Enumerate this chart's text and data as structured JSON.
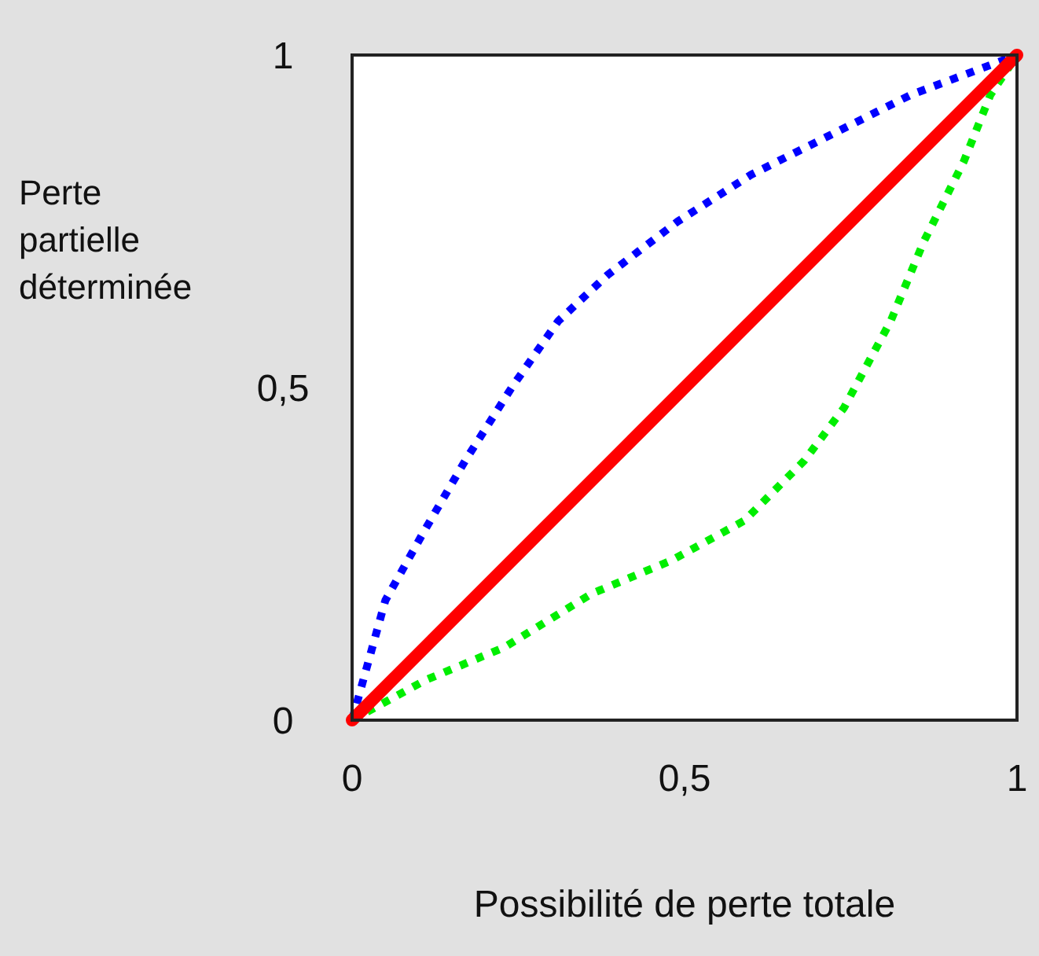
{
  "chart_data": {
    "type": "line",
    "xlabel": "Possibilité de perte totale",
    "ylabel": "Perte partielle déterminée",
    "xlim": [
      0,
      1
    ],
    "ylim": [
      0,
      1
    ],
    "xticks": [
      0,
      {
        "value": 0.5,
        "label": "0,5"
      },
      1
    ],
    "yticks": [
      0,
      {
        "value": 0.5,
        "label": "0,5"
      },
      1
    ],
    "series": [
      {
        "color": "#0000ff",
        "line_style": "dotted",
        "x": [
          0,
          0.012,
          0.05,
          0.106,
          0.17,
          0.24,
          0.31,
          0.385,
          0.49,
          0.6,
          0.72,
          0.84,
          0.92,
          1
        ],
        "values": [
          0,
          0.043,
          0.18,
          0.28,
          0.39,
          0.5,
          0.6,
          0.67,
          0.75,
          0.82,
          0.88,
          0.94,
          0.97,
          1
        ]
      },
      {
        "color": "#00ee00",
        "line_style": "dotted",
        "x": [
          0,
          0.11,
          0.23,
          0.36,
          0.48,
          0.59,
          0.68,
          0.74,
          0.81,
          0.86,
          0.92,
          0.96,
          1
        ],
        "values": [
          0,
          0.06,
          0.11,
          0.19,
          0.24,
          0.3,
          0.39,
          0.47,
          0.6,
          0.72,
          0.84,
          0.94,
          1
        ]
      },
      {
        "color": "#ff0000",
        "line_style": "solid",
        "x": [
          0,
          1
        ],
        "values": [
          0,
          1
        ]
      }
    ]
  }
}
